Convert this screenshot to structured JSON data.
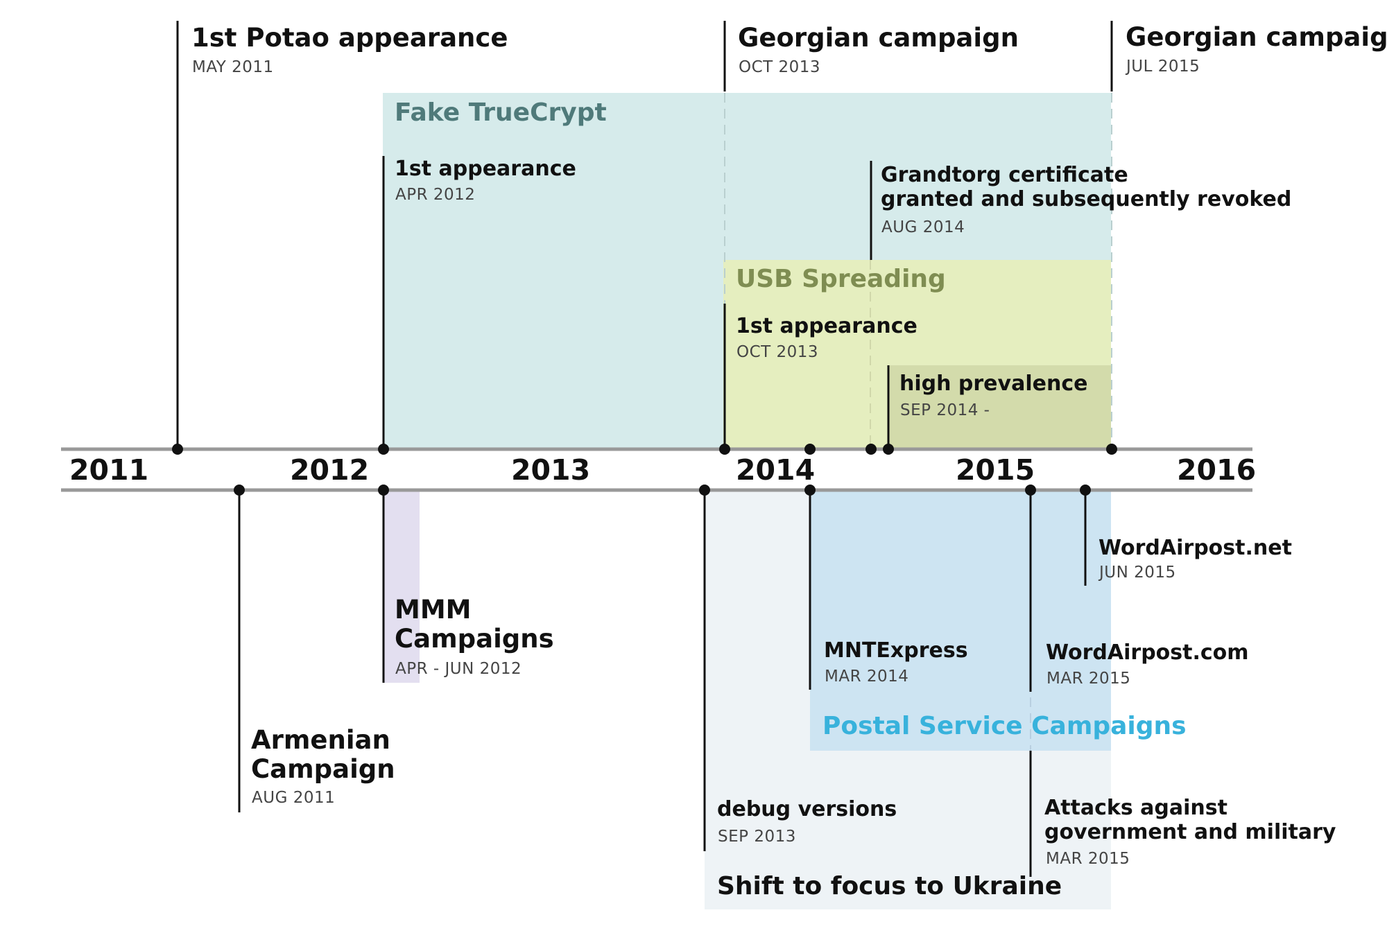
{
  "timeline": {
    "years": [
      "2011",
      "2012",
      "2013",
      "2014",
      "2015",
      "2016"
    ]
  },
  "colors": {
    "truecrypt": "#d6ebeb",
    "usb": "#e5eebf",
    "high_prevalence": "#d3dbab",
    "mmm": "#e3dff0",
    "ukraine": "#eef3f6",
    "postal": "#cde4f2",
    "postal_label": "#38b2dc",
    "truecrypt_label": "#4f7a7a",
    "usb_label": "#7f8d52",
    "axis": "#999999",
    "marker": "#111111"
  },
  "regions": {
    "truecrypt": {
      "label": "Fake TrueCrypt"
    },
    "usb": {
      "label": "USB Spreading"
    },
    "postal": {
      "label": "Postal Service Campaigns"
    },
    "ukraine": {
      "label": "Shift to focus to Ukraine"
    }
  },
  "events_above": {
    "potao": {
      "title": "1st Potao appearance",
      "date": "MAY 2011"
    },
    "georgian_2013": {
      "title": "Georgian campaign",
      "date": "OCT 2013"
    },
    "georgian_2015": {
      "title": "Georgian campaign",
      "date": "JUL 2015"
    },
    "truecrypt_first": {
      "title": "1st appearance",
      "date": "APR 2012"
    },
    "grandtorg": {
      "title_line1": "Grandtorg certificate",
      "title_line2": "granted and subsequently revoked",
      "date": "AUG 2014"
    },
    "usb_first": {
      "title": "1st appearance",
      "date": "OCT 2013"
    },
    "high_prev": {
      "title": "high prevalence",
      "date": "SEP 2014 -"
    }
  },
  "events_below": {
    "armenian": {
      "title_line1": "Armenian",
      "title_line2": "Campaign",
      "date": "AUG 2011"
    },
    "mmm": {
      "title_line1": "MMM",
      "title_line2": "Campaigns",
      "date": "APR - JUN 2012"
    },
    "debug": {
      "title": "debug versions",
      "date": "SEP 2013"
    },
    "mntexpress": {
      "title": "MNTExpress",
      "date": "MAR 2014"
    },
    "wordairpost_net": {
      "title": "WordAirpost.net",
      "date": "JUN 2015"
    },
    "wordairpost_com": {
      "title": "WordAirpost.com",
      "date": "MAR 2015"
    },
    "attacks": {
      "title_line1": "Attacks against",
      "title_line2": "government and military",
      "date": "MAR 2015"
    }
  }
}
